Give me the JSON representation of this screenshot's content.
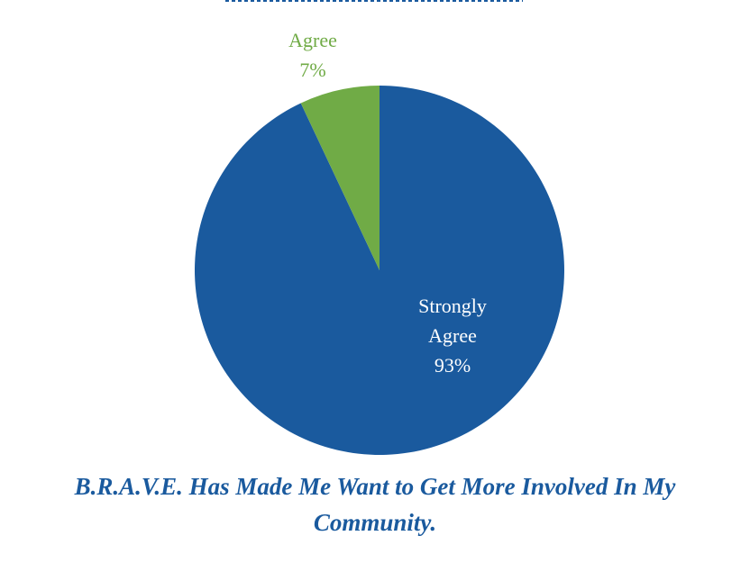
{
  "chart_data": {
    "type": "pie",
    "title": "B.R.A.V.E. Has Made Me Want to Get More Involved In My Community.",
    "categories": [
      "Strongly Agree",
      "Agree"
    ],
    "values": [
      93,
      7
    ],
    "value_labels": [
      "93%",
      "7%"
    ],
    "colors": [
      "#1a5a9e",
      "#70ab46"
    ],
    "label_colors": [
      "#ffffff",
      "#70ab46"
    ]
  }
}
